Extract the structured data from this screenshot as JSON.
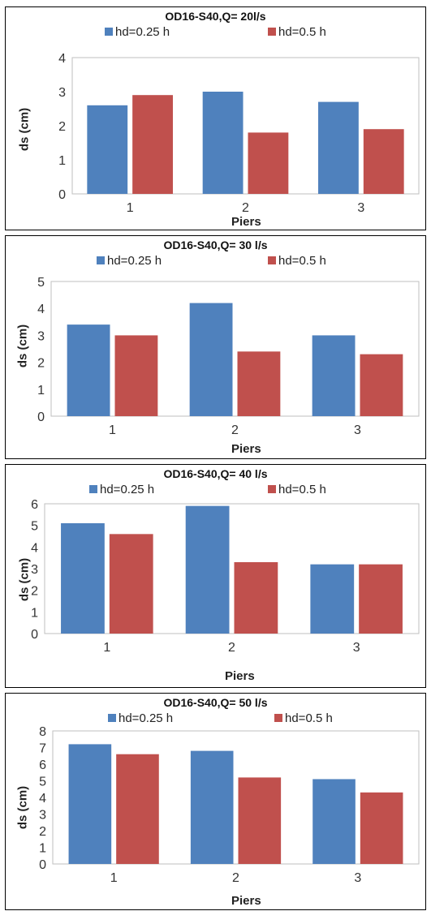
{
  "colors": {
    "series_a": "#4F81BD",
    "series_b": "#C0504D",
    "axis": "#BFBFBF"
  },
  "chart_data": [
    {
      "type": "bar",
      "title": "OD16-S40,Q= 20l/s",
      "xlabel": "Piers",
      "ylabel": "ds (cm)",
      "categories": [
        "1",
        "2",
        "3"
      ],
      "ylim": [
        0,
        4
      ],
      "yticks": [
        "0",
        "1",
        "2",
        "3",
        "4"
      ],
      "grid": false,
      "legend": "top",
      "series": [
        {
          "name": "hd=0.25 h",
          "values": [
            2.6,
            3.0,
            2.7
          ]
        },
        {
          "name": "hd=0.5 h",
          "values": [
            2.9,
            1.8,
            1.9
          ]
        }
      ]
    },
    {
      "type": "bar",
      "title": "OD16-S40,Q= 30 l/s",
      "xlabel": "Piers",
      "ylabel": "ds (cm)",
      "categories": [
        "1",
        "2",
        "3"
      ],
      "ylim": [
        0,
        5
      ],
      "yticks": [
        "0",
        "1",
        "2",
        "3",
        "4",
        "5"
      ],
      "grid": false,
      "legend": "top",
      "series": [
        {
          "name": "hd=0.25 h",
          "values": [
            3.4,
            4.2,
            3.0
          ]
        },
        {
          "name": "hd=0.5 h",
          "values": [
            3.0,
            2.4,
            2.3
          ]
        }
      ]
    },
    {
      "type": "bar",
      "title": "OD16-S40,Q= 40 l/s",
      "xlabel": "Piers",
      "ylabel": "ds (cm)",
      "categories": [
        "1",
        "2",
        "3"
      ],
      "ylim": [
        0,
        6
      ],
      "yticks": [
        "0",
        "1",
        "2",
        "3",
        "4",
        "5",
        "6"
      ],
      "grid": false,
      "legend": "top",
      "series": [
        {
          "name": "hd=0.25 h",
          "values": [
            5.1,
            5.9,
            3.2
          ]
        },
        {
          "name": "hd=0.5 h",
          "values": [
            4.6,
            3.3,
            3.2
          ]
        }
      ]
    },
    {
      "type": "bar",
      "title": "OD16-S40,Q= 50 l/s",
      "xlabel": "Piers",
      "ylabel": "ds (cm)",
      "categories": [
        "1",
        "2",
        "3"
      ],
      "ylim": [
        0,
        8
      ],
      "yticks": [
        "0",
        "1",
        "2",
        "3",
        "4",
        "5",
        "6",
        "7",
        "8"
      ],
      "grid": false,
      "legend": "top",
      "series": [
        {
          "name": "hd=0.25 h",
          "values": [
            7.2,
            6.8,
            5.1
          ]
        },
        {
          "name": "hd=0.5 h",
          "values": [
            6.6,
            5.2,
            4.3
          ]
        }
      ]
    }
  ]
}
